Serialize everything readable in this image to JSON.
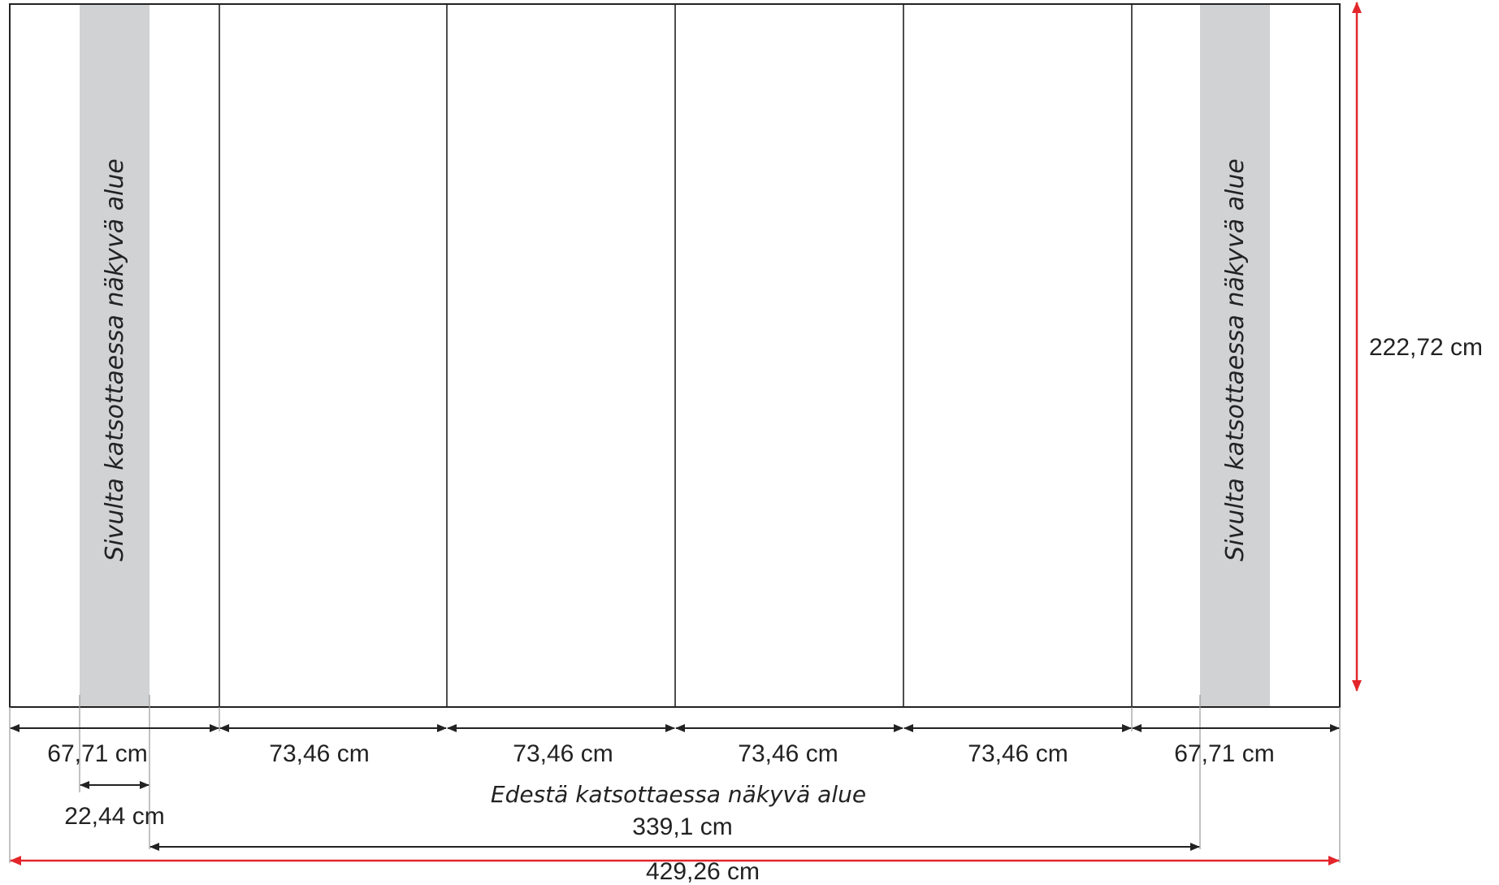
{
  "colors": {
    "outline": "#222222",
    "side_band": "#d1d2d4",
    "overall_dimension": "#e3262b",
    "text": "#222222"
  },
  "side_panel_label": "Sivulta katsottaessa näkyvä alue",
  "panel_widths": [
    "67,71 cm",
    "73,46 cm",
    "73,46 cm",
    "73,46 cm",
    "73,46 cm",
    "67,71 cm"
  ],
  "side_band_width": "22,44 cm",
  "front_visible_label": "Edestä katsottaessa näkyvä alue",
  "front_visible_width": "339,1 cm",
  "total_width": "429,26 cm",
  "total_height": "222,72 cm"
}
